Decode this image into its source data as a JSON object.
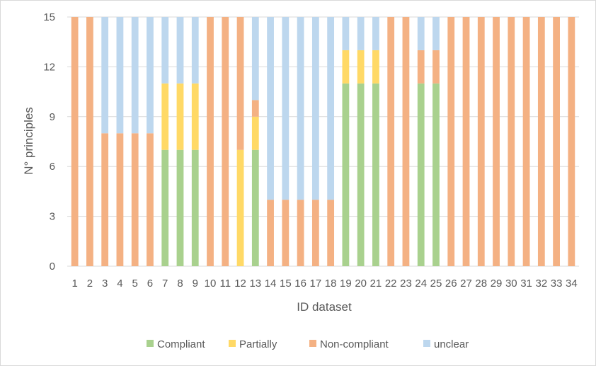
{
  "chart_data": {
    "type": "bar",
    "stacked": true,
    "title": "",
    "xlabel": "ID dataset",
    "ylabel": "N° principles",
    "ylim": [
      0,
      15
    ],
    "yticks": [
      0,
      3,
      6,
      9,
      12,
      15
    ],
    "grid": true,
    "legend_position": "bottom",
    "categories": [
      "1",
      "2",
      "3",
      "4",
      "5",
      "6",
      "7",
      "8",
      "9",
      "10",
      "11",
      "12",
      "13",
      "14",
      "15",
      "16",
      "17",
      "18",
      "19",
      "20",
      "21",
      "22",
      "23",
      "24",
      "25",
      "26",
      "27",
      "28",
      "29",
      "30",
      "31",
      "32",
      "33",
      "34"
    ],
    "series": [
      {
        "name": "Compliant",
        "color": "#a9d18e",
        "values": [
          0,
          0,
          0,
          0,
          0,
          0,
          7,
          7,
          7,
          0,
          0,
          0,
          7,
          0,
          0,
          0,
          0,
          0,
          11,
          11,
          11,
          0,
          0,
          11,
          11,
          0,
          0,
          0,
          0,
          0,
          0,
          0,
          0,
          0
        ]
      },
      {
        "name": "Partially",
        "color": "#ffd966",
        "values": [
          0,
          0,
          0,
          0,
          0,
          0,
          4,
          4,
          4,
          0,
          0,
          7,
          2,
          0,
          0,
          0,
          0,
          0,
          2,
          2,
          2,
          0,
          0,
          0,
          0,
          0,
          0,
          0,
          0,
          0,
          0,
          0,
          0,
          0
        ]
      },
      {
        "name": "Non-compliant",
        "color": "#f4b183",
        "values": [
          15,
          15,
          8,
          8,
          8,
          8,
          0,
          0,
          0,
          15,
          15,
          8,
          1,
          4,
          4,
          4,
          4,
          4,
          0,
          0,
          0,
          15,
          15,
          2,
          2,
          15,
          15,
          15,
          15,
          15,
          15,
          15,
          15,
          15
        ]
      },
      {
        "name": "unclear",
        "color": "#bdd7ee",
        "values": [
          0,
          0,
          7,
          7,
          7,
          7,
          4,
          4,
          4,
          0,
          0,
          0,
          5,
          11,
          11,
          11,
          11,
          11,
          2,
          2,
          2,
          0,
          0,
          2,
          2,
          0,
          0,
          0,
          0,
          0,
          0,
          0,
          0,
          0
        ]
      }
    ]
  }
}
